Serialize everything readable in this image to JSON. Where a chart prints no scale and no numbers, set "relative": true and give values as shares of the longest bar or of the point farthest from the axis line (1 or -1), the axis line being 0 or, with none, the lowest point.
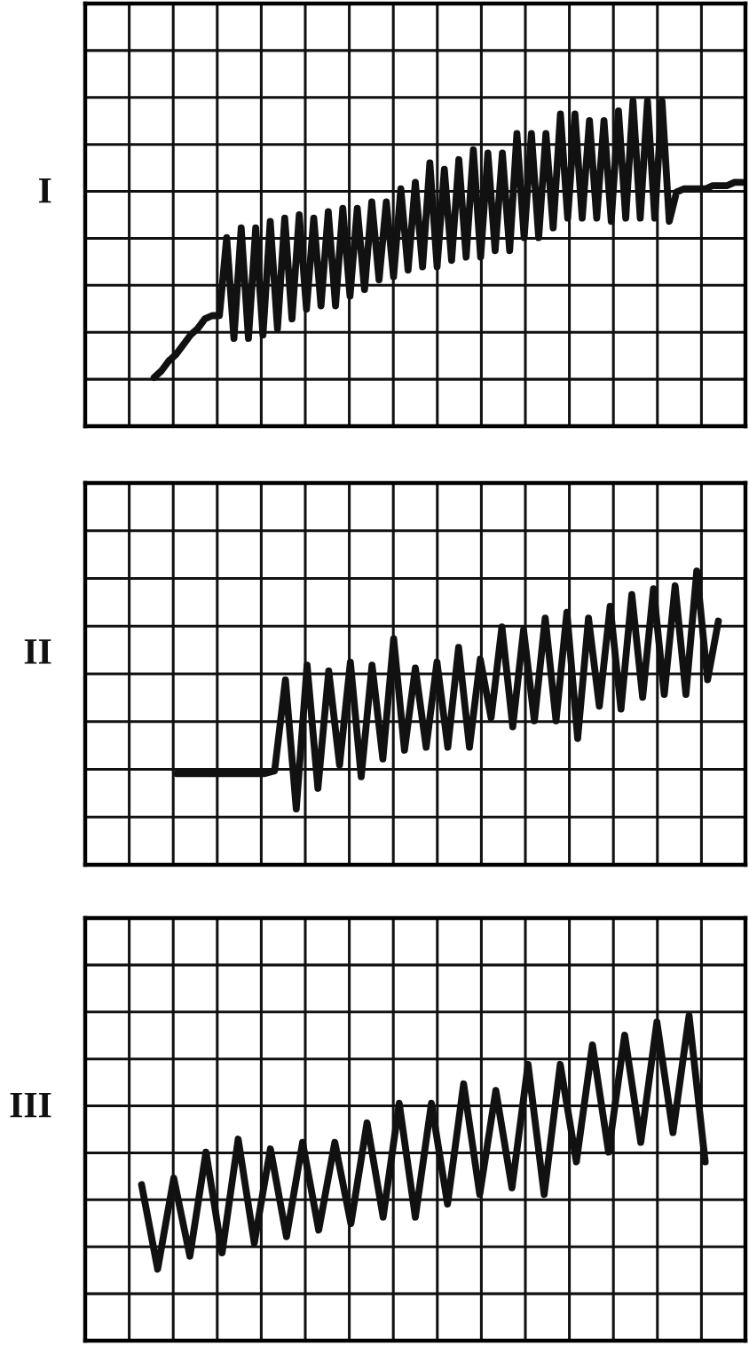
{
  "chart_data": [
    {
      "type": "line",
      "title": "I",
      "relative": true,
      "grid": true,
      "legend": false,
      "marker": "none",
      "line_style": "solid",
      "categories": [
        null,
        null,
        null,
        null,
        null,
        null,
        null,
        null,
        null,
        null,
        null,
        null,
        null,
        null,
        null,
        null,
        null,
        null,
        null,
        null,
        null,
        null,
        null,
        null,
        null,
        null,
        null,
        null,
        null,
        null,
        null,
        null,
        null,
        null,
        null,
        null,
        null,
        null,
        null,
        null,
        null,
        null,
        null,
        null,
        null,
        null,
        null,
        null,
        null,
        null,
        null,
        null,
        null,
        null,
        null,
        null,
        null,
        null,
        null,
        null,
        null,
        null,
        null,
        null,
        null,
        null,
        null,
        null,
        null,
        null,
        null,
        null,
        null,
        null,
        null,
        null,
        null,
        null,
        null,
        null,
        null,
        null,
        null,
        null,
        null,
        null,
        null,
        null,
        null,
        null,
        null
      ],
      "series": [
        {
          "color": "#111111",
          "values": [
            null,
            null,
            null,
            null,
            null,
            null,
            null,
            null,
            null,
            0.15,
            0.17,
            0.2,
            0.22,
            0.25,
            0.28,
            0.3,
            0.33,
            0.34,
            0.34,
            0.58,
            0.27,
            0.61,
            0.27,
            0.61,
            0.28,
            0.63,
            0.3,
            0.64,
            0.33,
            0.65,
            0.36,
            0.64,
            0.37,
            0.66,
            0.37,
            0.67,
            0.4,
            0.67,
            0.42,
            0.69,
            0.45,
            0.69,
            0.46,
            0.73,
            0.48,
            0.75,
            0.49,
            0.81,
            0.49,
            0.79,
            0.51,
            0.82,
            0.52,
            0.85,
            0.52,
            0.84,
            0.54,
            0.84,
            0.54,
            0.9,
            0.58,
            0.9,
            0.58,
            0.9,
            0.61,
            0.96,
            0.64,
            0.96,
            0.64,
            0.94,
            0.64,
            0.94,
            0.63,
            0.97,
            0.64,
            1.0,
            0.64,
            1.0,
            0.64,
            1.0,
            0.63,
            0.72,
            0.73,
            0.73,
            0.73,
            0.73,
            0.74,
            0.74,
            0.74,
            0.75,
            0.75
          ]
        }
      ]
    },
    {
      "type": "line",
      "title": "II",
      "relative": true,
      "grid": true,
      "legend": false,
      "marker": "none",
      "line_style": "solid",
      "categories": [
        null,
        null,
        null,
        null,
        null,
        null,
        null,
        null,
        null,
        null,
        null,
        null,
        null,
        null,
        null,
        null,
        null,
        null,
        null,
        null,
        null,
        null,
        null,
        null,
        null,
        null,
        null,
        null,
        null,
        null,
        null,
        null,
        null,
        null,
        null,
        null,
        null,
        null,
        null,
        null,
        null,
        null,
        null,
        null,
        null,
        null,
        null,
        null,
        null,
        null,
        null,
        null,
        null,
        null,
        null,
        null,
        null,
        null,
        null,
        null,
        null
      ],
      "series": [
        {
          "color": "#111111",
          "values": [
            null,
            null,
            null,
            null,
            null,
            null,
            null,
            null,
            0.31,
            0.31,
            0.31,
            0.31,
            0.31,
            0.31,
            0.31,
            0.31,
            0.31,
            0.32,
            0.63,
            0.19,
            0.68,
            0.26,
            0.66,
            0.34,
            0.69,
            0.3,
            0.68,
            0.36,
            0.77,
            0.39,
            0.67,
            0.4,
            0.69,
            0.4,
            0.74,
            0.4,
            0.7,
            0.5,
            0.81,
            0.47,
            0.8,
            0.49,
            0.84,
            0.49,
            0.86,
            0.43,
            0.84,
            0.54,
            0.88,
            0.53,
            0.92,
            0.57,
            0.94,
            0.58,
            0.95,
            0.58,
            1.0,
            0.63,
            0.83,
            null,
            null
          ]
        }
      ]
    },
    {
      "type": "line",
      "title": "III",
      "relative": true,
      "grid": true,
      "legend": false,
      "marker": "none",
      "line_style": "solid",
      "categories": [
        null,
        null,
        null,
        null,
        null,
        null,
        null,
        null,
        null,
        null,
        null,
        null,
        null,
        null,
        null,
        null,
        null,
        null,
        null,
        null,
        null,
        null,
        null,
        null,
        null,
        null,
        null,
        null,
        null,
        null,
        null,
        null,
        null,
        null,
        null,
        null,
        null,
        null,
        null,
        null,
        null
      ],
      "series": [
        {
          "color": "#111111",
          "values": [
            null,
            null,
            null,
            0.48,
            0.22,
            0.5,
            0.26,
            0.58,
            0.27,
            0.62,
            0.3,
            0.59,
            0.32,
            0.61,
            0.34,
            0.61,
            0.36,
            0.67,
            0.38,
            0.73,
            0.38,
            0.73,
            0.42,
            0.79,
            0.45,
            0.77,
            0.47,
            0.85,
            0.45,
            0.85,
            0.55,
            0.91,
            0.58,
            0.94,
            0.61,
            0.98,
            0.64,
            1.0,
            0.55,
            null,
            null
          ]
        }
      ]
    }
  ]
}
